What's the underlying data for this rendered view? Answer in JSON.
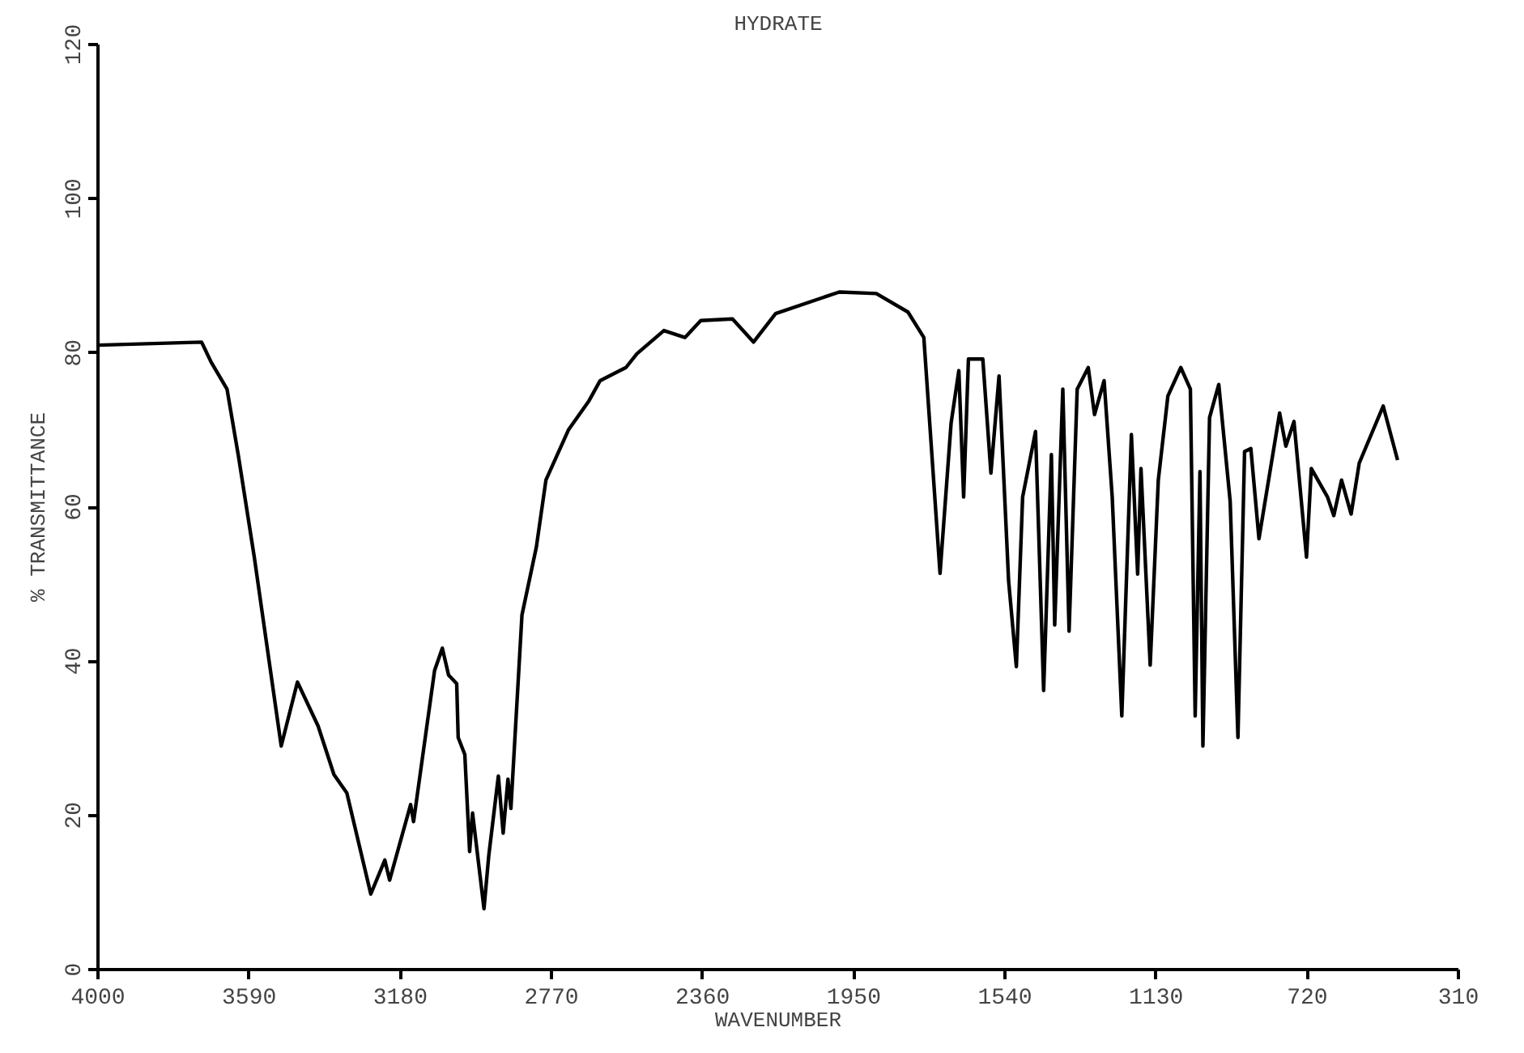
{
  "chart_data": {
    "type": "line",
    "title": "HYDRATE",
    "xlabel": "WAVENUMBER",
    "ylabel": "% TRANSMITTANCE",
    "xlim": [
      4000,
      310
    ],
    "xticks": [
      4000,
      3590,
      3180,
      2770,
      2360,
      1950,
      1540,
      1130,
      720,
      310
    ],
    "ylim": [
      0,
      120
    ],
    "yticks": [
      0,
      20,
      40,
      60,
      80,
      100,
      120
    ],
    "grid": false,
    "line_style": "solid",
    "series": [
      {
        "color": "#000000",
        "x": [
          4000,
          3719,
          3693,
          3650,
          3619,
          3576,
          3503,
          3459,
          3403,
          3360,
          3325,
          3260,
          3222,
          3209,
          3152,
          3144,
          3087,
          3066,
          3049,
          3027,
          3023,
          3005,
          2992,
          2984,
          2953,
          2940,
          2914,
          2901,
          2888,
          2880,
          2850,
          2811,
          2785,
          2724,
          2668,
          2638,
          2568,
          2538,
          2465,
          2408,
          2365,
          2279,
          2222,
          2162,
          1989,
          1889,
          1803,
          1760,
          1716,
          1686,
          1665,
          1652,
          1639,
          1600,
          1578,
          1556,
          1530,
          1509,
          1492,
          1457,
          1435,
          1414,
          1405,
          1383,
          1366,
          1344,
          1314,
          1297,
          1271,
          1249,
          1223,
          1197,
          1180,
          1171,
          1146,
          1124,
          1098,
          1063,
          1037,
          1024,
          1011,
          1003,
          985,
          960,
          929,
          908,
          890,
          873,
          851,
          795,
          778,
          756,
          722,
          709,
          665,
          648,
          627,
          601,
          579,
          514,
          475
        ],
        "values": [
          81.0,
          81.4,
          78.8,
          75.3,
          66.6,
          53.5,
          29.0,
          37.3,
          31.6,
          25.3,
          22.9,
          9.8,
          14.2,
          11.6,
          21.4,
          19.2,
          38.8,
          41.7,
          38.2,
          37.1,
          30.1,
          27.9,
          15.3,
          20.3,
          7.9,
          14.8,
          25.1,
          17.7,
          24.7,
          20.9,
          46.0,
          54.8,
          63.5,
          70.0,
          73.8,
          76.4,
          78.1,
          79.9,
          82.9,
          82.0,
          84.2,
          84.4,
          81.4,
          85.1,
          87.9,
          87.7,
          85.3,
          82.0,
          51.4,
          70.9,
          77.7,
          61.3,
          79.2,
          79.2,
          64.4,
          77.0,
          50.4,
          39.3,
          61.3,
          69.8,
          36.2,
          66.8,
          44.7,
          75.3,
          43.9,
          75.3,
          78.1,
          72.0,
          76.4,
          61.3,
          32.9,
          69.4,
          51.3,
          65.0,
          39.5,
          63.5,
          74.4,
          78.1,
          75.3,
          32.9,
          64.6,
          29.0,
          71.6,
          75.9,
          60.7,
          30.1,
          67.2,
          67.6,
          55.9,
          72.2,
          67.9,
          71.1,
          53.5,
          65.0,
          61.3,
          58.9,
          63.5,
          59.1,
          65.7,
          73.1,
          66.1
        ]
      }
    ]
  }
}
